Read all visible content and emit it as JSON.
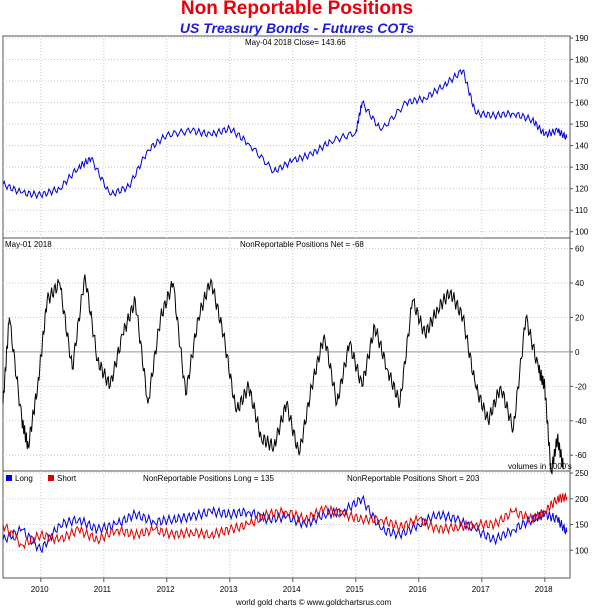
{
  "title": "Non Reportable Positions",
  "subtitle": "US Treasury Bonds - Futures COTs",
  "footer": "world gold charts © www.goldchartsrus.com",
  "chart_data": [
    {
      "type": "line",
      "panel": "price",
      "label": "May-04  2018   Close= 143.66",
      "color": "#0000dd",
      "ylim": [
        98,
        190
      ],
      "yticks": [
        100,
        110,
        120,
        130,
        140,
        150,
        160,
        170,
        180,
        190
      ],
      "xlim": [
        2009.4,
        2018.4
      ],
      "series": [
        {
          "x": [
            2009.4,
            2009.7,
            2010.0,
            2010.3,
            2010.6,
            2010.8,
            2011.1,
            2011.4,
            2011.7,
            2012.0,
            2012.4,
            2012.7,
            2013.0,
            2013.3,
            2013.7,
            2014.0,
            2014.3,
            2014.6,
            2015.0,
            2015.1,
            2015.4,
            2015.8,
            2016.1,
            2016.4,
            2016.7,
            2016.9,
            2017.2,
            2017.5,
            2017.8,
            2018.0,
            2018.2,
            2018.35
          ],
          "y": [
            122,
            118,
            117,
            120,
            130,
            134,
            117,
            121,
            138,
            145,
            147,
            145,
            148,
            141,
            128,
            133,
            136,
            142,
            146,
            160,
            147,
            160,
            162,
            168,
            175,
            155,
            154,
            155,
            152,
            145,
            147,
            143.66
          ]
        }
      ]
    },
    {
      "type": "line",
      "panel": "net",
      "label": "May-01  2018",
      "series_label": "NonReportable Positions Net = -68",
      "color": "#000000",
      "ylim": [
        -68,
        65
      ],
      "yticks": [
        60,
        40,
        20,
        0,
        -20,
        -40,
        -60
      ],
      "xlim": [
        2009.4,
        2018.4
      ],
      "note": "volumes in 1000's",
      "series": [
        {
          "x": [
            2009.4,
            2009.5,
            2009.7,
            2009.8,
            2009.95,
            2010.1,
            2010.3,
            2010.5,
            2010.7,
            2010.9,
            2011.1,
            2011.3,
            2011.5,
            2011.7,
            2011.9,
            2012.1,
            2012.3,
            2012.5,
            2012.7,
            2012.9,
            2013.1,
            2013.3,
            2013.5,
            2013.7,
            2013.9,
            2014.1,
            2014.3,
            2014.5,
            2014.7,
            2014.9,
            2015.1,
            2015.3,
            2015.5,
            2015.7,
            2015.9,
            2016.1,
            2016.3,
            2016.5,
            2016.7,
            2016.9,
            2017.1,
            2017.3,
            2017.5,
            2017.7,
            2017.9,
            2018.0,
            2018.1,
            2018.2,
            2018.3
          ],
          "y": [
            -30,
            20,
            -40,
            -55,
            -20,
            30,
            40,
            -10,
            45,
            -5,
            -20,
            10,
            30,
            -30,
            20,
            40,
            -25,
            20,
            42,
            10,
            -35,
            -20,
            -50,
            -55,
            -30,
            -60,
            -20,
            10,
            -30,
            5,
            -20,
            15,
            -10,
            -30,
            30,
            10,
            25,
            35,
            20,
            -20,
            -40,
            -20,
            -45,
            20,
            -10,
            -20,
            -70,
            -50,
            -68
          ]
        }
      ]
    },
    {
      "type": "line",
      "panel": "long-short",
      "ylim": [
        50,
        250
      ],
      "yticks": [
        250,
        200,
        150,
        100
      ],
      "xlim": [
        2009.4,
        2018.4
      ],
      "legend": [
        {
          "name": "Long",
          "color": "#0000dd"
        },
        {
          "name": "Short",
          "color": "#e00000"
        }
      ],
      "long_label": "NonReportable Positions Long = 135",
      "short_label": "NonReportable Positions Short = 203",
      "xticks": [
        "2010",
        "2011",
        "2012",
        "2013",
        "2014",
        "2015",
        "2016",
        "2017",
        "2018"
      ],
      "series": [
        {
          "name": "Long",
          "color": "#0000dd",
          "x": [
            2009.4,
            2009.7,
            2010.0,
            2010.3,
            2010.6,
            2010.9,
            2011.2,
            2011.5,
            2011.8,
            2012.1,
            2012.4,
            2012.7,
            2013.0,
            2013.3,
            2013.6,
            2013.9,
            2014.2,
            2014.5,
            2014.8,
            2015.1,
            2015.4,
            2015.7,
            2016.0,
            2016.3,
            2016.6,
            2016.9,
            2017.2,
            2017.5,
            2017.8,
            2018.0,
            2018.2,
            2018.35
          ],
          "y": [
            120,
            140,
            100,
            150,
            160,
            140,
            150,
            170,
            155,
            160,
            165,
            175,
            170,
            175,
            160,
            165,
            150,
            170,
            175,
            200,
            140,
            130,
            150,
            170,
            160,
            140,
            120,
            140,
            160,
            170,
            160,
            135
          ]
        },
        {
          "name": "Short",
          "color": "#e00000",
          "x": [
            2009.4,
            2009.7,
            2010.0,
            2010.3,
            2010.6,
            2010.9,
            2011.2,
            2011.5,
            2011.8,
            2012.1,
            2012.4,
            2012.7,
            2013.0,
            2013.3,
            2013.6,
            2013.9,
            2014.2,
            2014.5,
            2014.8,
            2015.1,
            2015.4,
            2015.7,
            2016.0,
            2016.3,
            2016.6,
            2016.9,
            2017.2,
            2017.5,
            2017.8,
            2018.0,
            2018.2,
            2018.35
          ],
          "y": [
            150,
            110,
            130,
            120,
            140,
            120,
            140,
            130,
            140,
            130,
            135,
            130,
            140,
            150,
            170,
            175,
            160,
            180,
            170,
            160,
            160,
            145,
            160,
            140,
            145,
            150,
            150,
            175,
            160,
            175,
            200,
            203
          ]
        }
      ]
    }
  ]
}
